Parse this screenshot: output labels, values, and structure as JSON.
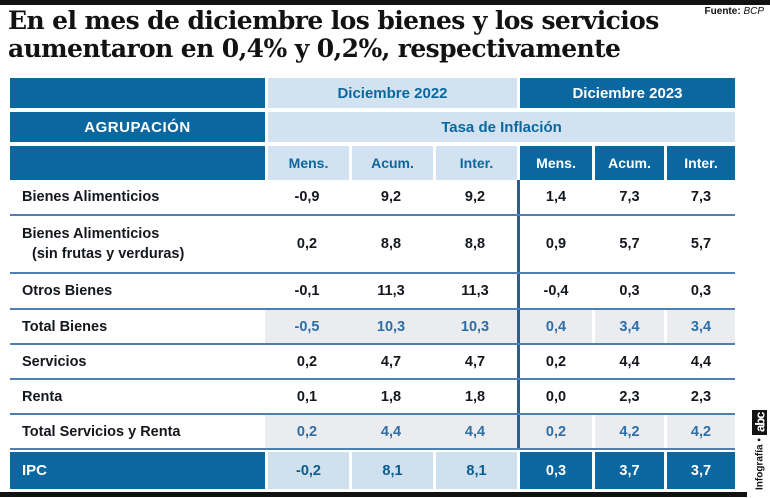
{
  "page": {
    "title_line1": "En el mes de diciembre los bienes y los servicios",
    "title_line2": "aumentaron en 0,4% y 0,2%, respectivamente",
    "source_label": "Fuente:",
    "source_value": "BCP",
    "credit_text": "Infografía •",
    "credit_logo": "abc"
  },
  "table": {
    "group_column_header": "AGRUPACIÓN",
    "period_2022": "Diciembre 2022",
    "period_2023": "Diciembre 2023",
    "measure_header": "Tasa de Inflación",
    "subheaders_2022": [
      "Mens.",
      "Acum.",
      "Inter."
    ],
    "subheaders_2023": [
      "Mens.",
      "Acum.",
      "Inter."
    ],
    "rows": [
      {
        "label": "Bienes Alimenticios",
        "label2": "",
        "values_2022": [
          "-0,9",
          "9,2",
          "9,2"
        ],
        "values_2023": [
          "1,4",
          "7,3",
          "7,3"
        ],
        "style": "normal"
      },
      {
        "label": "Bienes Alimenticios",
        "label2": "(sin frutas y verduras)",
        "values_2022": [
          "0,2",
          "8,8",
          "8,8"
        ],
        "values_2023": [
          "0,9",
          "5,7",
          "5,7"
        ],
        "style": "normal"
      },
      {
        "label": "Otros Bienes",
        "label2": "",
        "values_2022": [
          "-0,1",
          "11,3",
          "11,3"
        ],
        "values_2023": [
          "-0,4",
          "0,3",
          "0,3"
        ],
        "style": "normal"
      },
      {
        "label": "Total Bienes",
        "label2": "",
        "values_2022": [
          "-0,5",
          "10,3",
          "10,3"
        ],
        "values_2023": [
          "0,4",
          "3,4",
          "3,4"
        ],
        "style": "total"
      },
      {
        "label": "Servicios",
        "label2": "",
        "values_2022": [
          "0,2",
          "4,7",
          "4,7"
        ],
        "values_2023": [
          "0,2",
          "4,4",
          "4,4"
        ],
        "style": "normal"
      },
      {
        "label": "Renta",
        "label2": "",
        "values_2022": [
          "0,1",
          "1,8",
          "1,8"
        ],
        "values_2023": [
          "0,0",
          "2,3",
          "2,3"
        ],
        "style": "normal"
      },
      {
        "label": "Total Servicios y Renta",
        "label2": "",
        "values_2022": [
          "0,2",
          "4,4",
          "4,4"
        ],
        "values_2023": [
          "0,2",
          "4,2",
          "4,2"
        ],
        "style": "total"
      },
      {
        "label": "IPC",
        "label2": "",
        "values_2022": [
          "-0,2",
          "8,1",
          "8,1"
        ],
        "values_2023": [
          "0,3",
          "3,7",
          "3,7"
        ],
        "style": "ipc"
      }
    ]
  },
  "colors": {
    "dark_blue": "#0a67a0",
    "light_blue": "#d3e2f0",
    "total_row_bg": "#ebecf0",
    "total_value_text": "#2e6ea6",
    "row_separator": "#4d7fb3",
    "group_divider": "#2d5f8e",
    "bar_black": "#121212"
  },
  "chart_data": {
    "type": "table",
    "title": "En el mes de diciembre los bienes y los servicios aumentaron en 0,4% y 0,2%, respectivamente",
    "source": "BCP",
    "measure": "Tasa de Inflación",
    "column_groups": [
      "Diciembre 2022",
      "Diciembre 2023"
    ],
    "columns": [
      "AGRUPACIÓN",
      "Mens. 2022",
      "Acum. 2022",
      "Inter. 2022",
      "Mens. 2023",
      "Acum. 2023",
      "Inter. 2023"
    ],
    "rows": [
      [
        "Bienes Alimenticios",
        -0.9,
        9.2,
        9.2,
        1.4,
        7.3,
        7.3
      ],
      [
        "Bienes Alimenticios (sin frutas y verduras)",
        0.2,
        8.8,
        8.8,
        0.9,
        5.7,
        5.7
      ],
      [
        "Otros Bienes",
        -0.1,
        11.3,
        11.3,
        -0.4,
        0.3,
        0.3
      ],
      [
        "Total Bienes",
        -0.5,
        10.3,
        10.3,
        0.4,
        3.4,
        3.4
      ],
      [
        "Servicios",
        0.2,
        4.7,
        4.7,
        0.2,
        4.4,
        4.4
      ],
      [
        "Renta",
        0.1,
        1.8,
        1.8,
        0.0,
        2.3,
        2.3
      ],
      [
        "Total Servicios y Renta",
        0.2,
        4.4,
        4.4,
        0.2,
        4.2,
        4.2
      ],
      [
        "IPC",
        -0.2,
        8.1,
        8.1,
        0.3,
        3.7,
        3.7
      ]
    ]
  }
}
